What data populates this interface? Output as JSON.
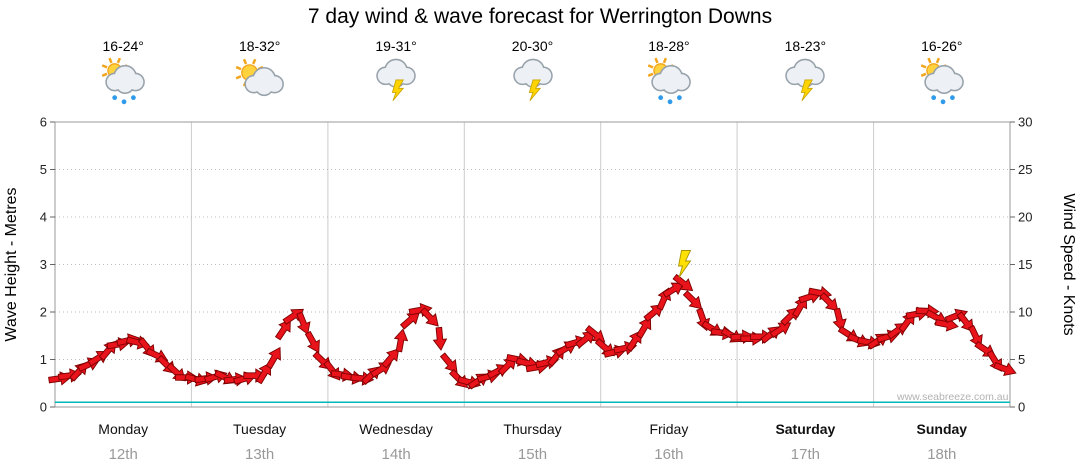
{
  "title": "7 day wind & wave forecast for Werrington Downs",
  "watermark": "www.seabreeze.com.au",
  "axes": {
    "left": {
      "label": "Wave Height - Metres",
      "ticks": [
        "0",
        "1",
        "2",
        "3",
        "4",
        "5",
        "6"
      ]
    },
    "right": {
      "label": "Wind Speed - Knots",
      "ticks": [
        "0",
        "5",
        "10",
        "15",
        "20",
        "25",
        "30"
      ]
    }
  },
  "days": [
    {
      "name": "Monday",
      "date": "12th",
      "temp": "16-24°",
      "icon": "sun-cloud-rain-icon",
      "bold": false
    },
    {
      "name": "Tuesday",
      "date": "13th",
      "temp": "18-32°",
      "icon": "sun-cloud-icon",
      "bold": false
    },
    {
      "name": "Wednesday",
      "date": "14th",
      "temp": "19-31°",
      "icon": "storm-icon",
      "bold": false
    },
    {
      "name": "Thursday",
      "date": "15th",
      "temp": "20-30°",
      "icon": "storm-icon",
      "bold": false
    },
    {
      "name": "Friday",
      "date": "16th",
      "temp": "18-28°",
      "icon": "sun-cloud-rain-icon",
      "bold": false
    },
    {
      "name": "Saturday",
      "date": "17th",
      "temp": "18-23°",
      "icon": "storm-icon",
      "bold": true
    },
    {
      "name": "Sunday",
      "date": "18th",
      "temp": "16-26°",
      "icon": "sun-cloud-rain-icon",
      "bold": true
    }
  ],
  "chart_data": {
    "type": "line",
    "title": "7 day wind & wave forecast for Werrington Downs",
    "x_categories": [
      "Monday 12th",
      "Tuesday 13th",
      "Wednesday 14th",
      "Thursday 15th",
      "Friday 16th",
      "Saturday 17th",
      "Sunday 18th"
    ],
    "points_per_day": 14,
    "ylabel_left": "Wave Height - Metres",
    "ylabel_right": "Wind Speed - Knots",
    "ylim_left_metres": [
      0,
      6
    ],
    "ylim_right_knots": [
      0,
      30
    ],
    "grid": true,
    "series": [
      {
        "name": "Wind Speed",
        "unit": "knots",
        "marker": "wind-arrow",
        "color": "#e8131b",
        "values": [
          3.0,
          3.3,
          3.8,
          4.5,
          5.2,
          6.0,
          6.6,
          7.0,
          6.8,
          6.2,
          5.4,
          4.4,
          3.6,
          3.1,
          2.9,
          3.0,
          3.2,
          3.1,
          2.9,
          3.0,
          3.3,
          3.6,
          5.2,
          8.2,
          9.6,
          8.8,
          6.8,
          4.8,
          3.8,
          3.4,
          3.1,
          3.0,
          3.4,
          4.0,
          5.2,
          7.0,
          9.2,
          10.2,
          9.4,
          7.2,
          4.6,
          2.9,
          2.6,
          2.8,
          3.2,
          3.8,
          4.4,
          5.0,
          4.6,
          4.2,
          4.7,
          5.4,
          6.2,
          6.8,
          7.2,
          7.6,
          6.2,
          5.8,
          6.2,
          7.0,
          8.4,
          10.0,
          11.4,
          12.4,
          13.0,
          11.2,
          9.2,
          8.2,
          7.8,
          7.5,
          7.4,
          7.2,
          7.4,
          7.7,
          8.2,
          9.6,
          10.6,
          11.6,
          12.0,
          11.0,
          9.2,
          7.6,
          7.0,
          6.8,
          7.0,
          7.4,
          8.1,
          9.0,
          9.8,
          10.1,
          9.4,
          8.7,
          9.6,
          8.9,
          7.4,
          6.0,
          4.8,
          4.0
        ]
      },
      {
        "name": "Wave Height",
        "unit": "metres",
        "style": "line",
        "color": "#00b7b7",
        "constant_value": 0.1
      }
    ],
    "annotations": [
      {
        "symbol": "lightning-bolt",
        "day": "Friday",
        "at_peak_knots": 13,
        "color": "#ffe000"
      }
    ]
  }
}
